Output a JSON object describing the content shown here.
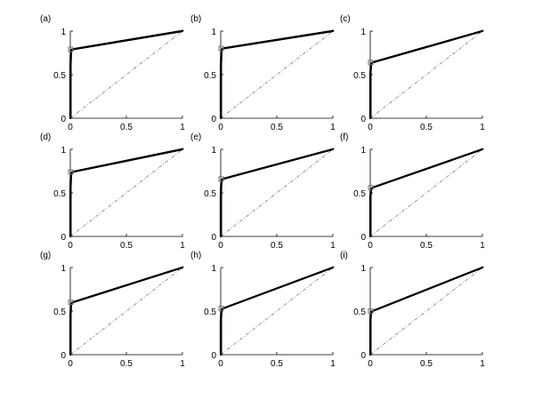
{
  "chart_data": [
    {
      "type": "line",
      "panel_label": "(a)",
      "x_ticks": [
        "0",
        "0.5",
        "1"
      ],
      "y_ticks": [
        "0",
        "0.5",
        "1"
      ],
      "xlim": [
        0,
        1
      ],
      "ylim": [
        0,
        1
      ],
      "series": [
        {
          "x": [
            0,
            0,
            0.005,
            0.02,
            1
          ],
          "y": [
            0,
            0.6,
            0.78,
            0.79,
            1
          ]
        }
      ],
      "marker": {
        "x": 0.0,
        "y": 0.79
      },
      "reference_line": {
        "x": [
          0,
          1
        ],
        "y": [
          0,
          1
        ]
      }
    },
    {
      "type": "line",
      "panel_label": "(b)",
      "x_ticks": [
        "0",
        "0.5",
        "1"
      ],
      "y_ticks": [
        "0",
        "0.5",
        "1"
      ],
      "xlim": [
        0,
        1
      ],
      "ylim": [
        0,
        1
      ],
      "series": [
        {
          "x": [
            0,
            0,
            0.005,
            0.02,
            1
          ],
          "y": [
            0,
            0.6,
            0.78,
            0.8,
            1
          ]
        }
      ],
      "marker": {
        "x": 0.0,
        "y": 0.8
      },
      "reference_line": {
        "x": [
          0,
          1
        ],
        "y": [
          0,
          1
        ]
      }
    },
    {
      "type": "line",
      "panel_label": "(c)",
      "x_ticks": [
        "0",
        "0.5",
        "1"
      ],
      "y_ticks": [
        "0",
        "0.5",
        "1"
      ],
      "xlim": [
        0,
        1
      ],
      "ylim": [
        0,
        1
      ],
      "series": [
        {
          "x": [
            0,
            0,
            0.005,
            0.02,
            1
          ],
          "y": [
            0,
            0.5,
            0.62,
            0.64,
            1
          ]
        }
      ],
      "marker": {
        "x": 0.0,
        "y": 0.64
      },
      "reference_line": {
        "x": [
          0,
          1
        ],
        "y": [
          0,
          1
        ]
      }
    },
    {
      "type": "line",
      "panel_label": "(d)",
      "x_ticks": [
        "0",
        "0.5",
        "1"
      ],
      "y_ticks": [
        "0",
        "0.5",
        "1"
      ],
      "xlim": [
        0,
        1
      ],
      "ylim": [
        0,
        1
      ],
      "series": [
        {
          "x": [
            0,
            0,
            0.005,
            0.02,
            1
          ],
          "y": [
            0,
            0.55,
            0.72,
            0.74,
            1
          ]
        }
      ],
      "marker": {
        "x": 0.0,
        "y": 0.74
      },
      "reference_line": {
        "x": [
          0,
          1
        ],
        "y": [
          0,
          1
        ]
      }
    },
    {
      "type": "line",
      "panel_label": "(e)",
      "x_ticks": [
        "0",
        "0.5",
        "1"
      ],
      "y_ticks": [
        "0",
        "0.5",
        "1"
      ],
      "xlim": [
        0,
        1
      ],
      "ylim": [
        0,
        1
      ],
      "series": [
        {
          "x": [
            0,
            0,
            0.005,
            0.02,
            1
          ],
          "y": [
            0,
            0.5,
            0.64,
            0.66,
            1
          ]
        }
      ],
      "marker": {
        "x": 0.0,
        "y": 0.66
      },
      "reference_line": {
        "x": [
          0,
          1
        ],
        "y": [
          0,
          1
        ]
      }
    },
    {
      "type": "line",
      "panel_label": "(f)",
      "x_ticks": [
        "0",
        "0.5",
        "1"
      ],
      "y_ticks": [
        "0",
        "0.5",
        "1"
      ],
      "xlim": [
        0,
        1
      ],
      "ylim": [
        0,
        1
      ],
      "series": [
        {
          "x": [
            0,
            0,
            0.005,
            0.02,
            1
          ],
          "y": [
            0,
            0.45,
            0.54,
            0.56,
            1
          ]
        }
      ],
      "marker": {
        "x": 0.0,
        "y": 0.56
      },
      "reference_line": {
        "x": [
          0,
          1
        ],
        "y": [
          0,
          1
        ]
      }
    },
    {
      "type": "line",
      "panel_label": "(g)",
      "x_ticks": [
        "0",
        "0.5",
        "1"
      ],
      "y_ticks": [
        "0",
        "0.5",
        "1"
      ],
      "xlim": [
        0,
        1
      ],
      "ylim": [
        0,
        1
      ],
      "series": [
        {
          "x": [
            0,
            0,
            0.005,
            0.02,
            1
          ],
          "y": [
            0,
            0.45,
            0.58,
            0.6,
            1
          ]
        }
      ],
      "marker": {
        "x": 0.0,
        "y": 0.6
      },
      "reference_line": {
        "x": [
          0,
          1
        ],
        "y": [
          0,
          1
        ]
      }
    },
    {
      "type": "line",
      "panel_label": "(h)",
      "x_ticks": [
        "0",
        "0.5",
        "1"
      ],
      "y_ticks": [
        "0",
        "0.5",
        "1"
      ],
      "xlim": [
        0,
        1
      ],
      "ylim": [
        0,
        1
      ],
      "series": [
        {
          "x": [
            0,
            0,
            0.005,
            0.02,
            1
          ],
          "y": [
            0,
            0.4,
            0.51,
            0.53,
            1
          ]
        }
      ],
      "marker": {
        "x": 0.0,
        "y": 0.53
      },
      "reference_line": {
        "x": [
          0,
          1
        ],
        "y": [
          0,
          1
        ]
      }
    },
    {
      "type": "line",
      "panel_label": "(i)",
      "x_ticks": [
        "0",
        "0.5",
        "1"
      ],
      "y_ticks": [
        "0",
        "0.5",
        "1"
      ],
      "xlim": [
        0,
        1
      ],
      "ylim": [
        0,
        1
      ],
      "series": [
        {
          "x": [
            0,
            0,
            0.005,
            0.02,
            1
          ],
          "y": [
            0,
            0.4,
            0.48,
            0.5,
            1
          ]
        }
      ],
      "marker": {
        "x": 0.0,
        "y": 0.5
      },
      "reference_line": {
        "x": [
          0,
          1
        ],
        "y": [
          0,
          1
        ]
      }
    }
  ]
}
